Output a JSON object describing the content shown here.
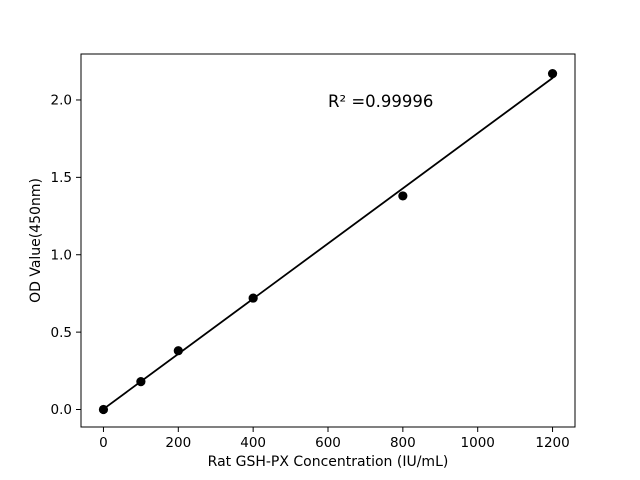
{
  "figure": {
    "background": "#ffffff",
    "foreground": "#000000"
  },
  "chart_data": {
    "type": "scatter",
    "title": "",
    "xlabel": "Rat GSH-PX Concentration (IU/mL)",
    "ylabel": "OD Value(450nm)",
    "grid": false,
    "legend": "none",
    "xlim": [
      -60,
      1260
    ],
    "ylim": [
      -0.113,
      2.297
    ],
    "xticks": [
      {
        "v": 0,
        "label": "0"
      },
      {
        "v": 200,
        "label": "200"
      },
      {
        "v": 400,
        "label": "400"
      },
      {
        "v": 600,
        "label": "600"
      },
      {
        "v": 800,
        "label": "800"
      },
      {
        "v": 1000,
        "label": "1000"
      },
      {
        "v": 1200,
        "label": "1200"
      }
    ],
    "yticks": [
      {
        "v": 0.0,
        "label": "0.0"
      },
      {
        "v": 0.5,
        "label": "0.5"
      },
      {
        "v": 1.0,
        "label": "1.0"
      },
      {
        "v": 1.5,
        "label": "1.5"
      },
      {
        "v": 2.0,
        "label": "2.0"
      }
    ],
    "series": [
      {
        "name": "standard-curve-points",
        "kind": "scatter",
        "marker": "circle",
        "color": "#000000",
        "x": [
          0,
          100,
          200,
          400,
          800,
          1200
        ],
        "y": [
          0.0,
          0.18,
          0.38,
          0.72,
          1.38,
          2.17
        ]
      },
      {
        "name": "linear-fit-line",
        "kind": "line",
        "color": "#000000",
        "x": [
          0,
          1200
        ],
        "y": [
          0.003,
          2.142
        ]
      }
    ],
    "annotation": {
      "text": "R² =0.99996",
      "x": 600,
      "y": 1.96
    }
  }
}
